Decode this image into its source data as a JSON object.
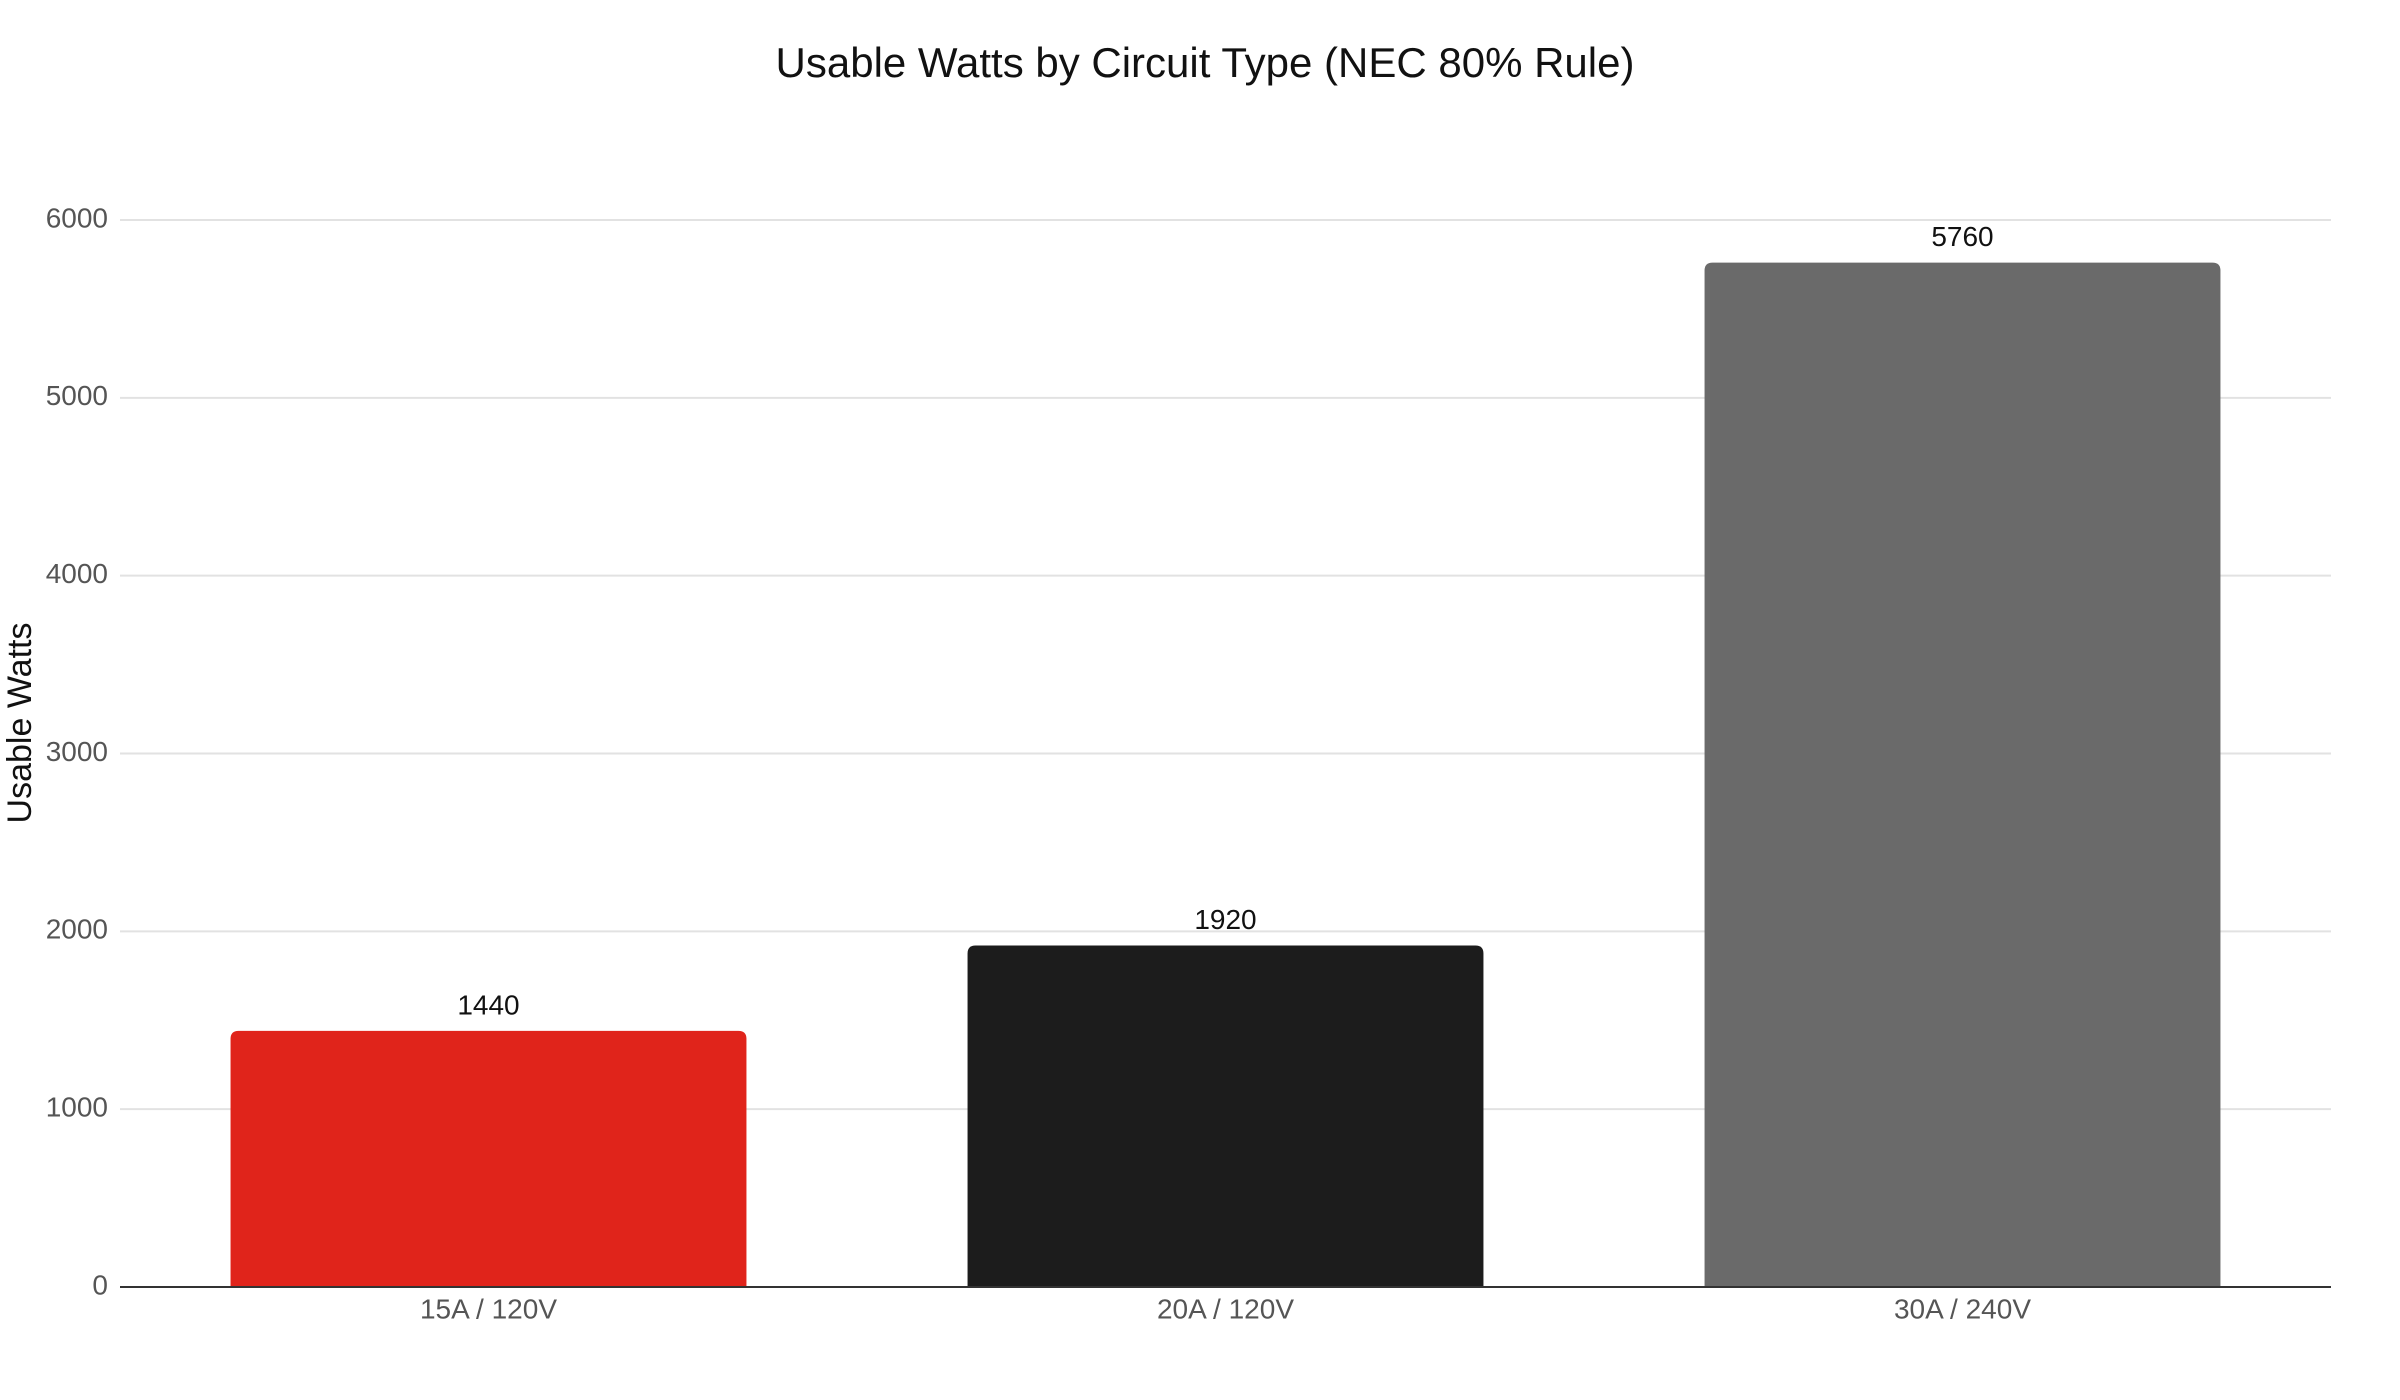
{
  "chart_data": {
    "type": "bar",
    "title": "Usable Watts by Circuit Type (NEC 80% Rule)",
    "y_label": "Usable Watts",
    "categories": [
      "15A / 120V",
      "20A / 120V",
      "30A / 240V"
    ],
    "values": [
      1440,
      1920,
      5760
    ],
    "colors": [
      "#e0241b",
      "#1c1c1c",
      "#6a6a6a"
    ],
    "ylim": [
      0,
      6000
    ],
    "yticks": [
      0,
      1000,
      2000,
      3000,
      4000,
      5000,
      6000
    ],
    "grid": true
  }
}
